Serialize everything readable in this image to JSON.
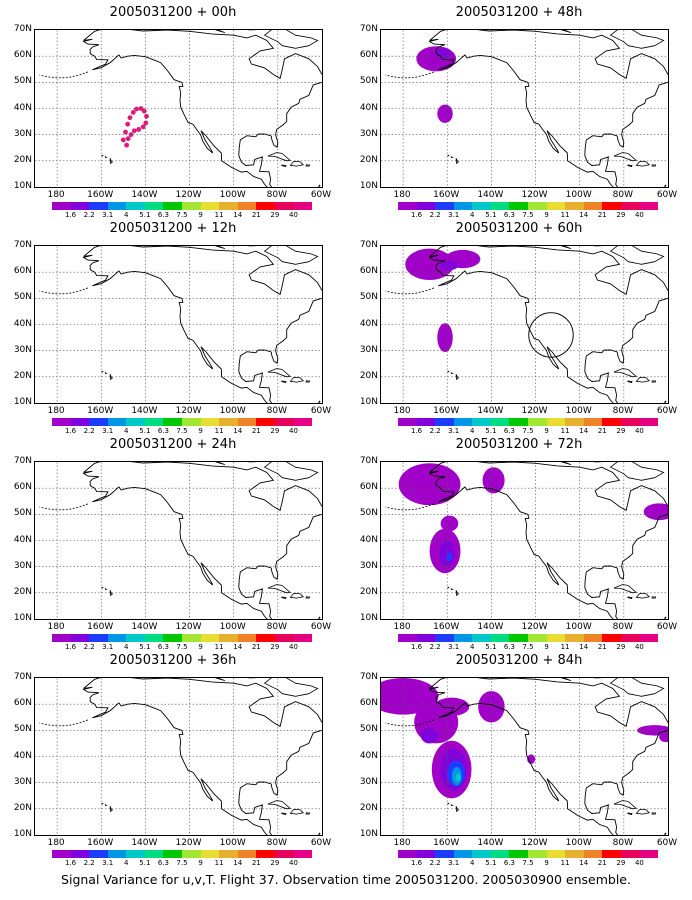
{
  "panels": [
    {
      "title": "2005031200 + 00h"
    },
    {
      "title": "2005031200 + 12h"
    },
    {
      "title": "2005031200 + 24h"
    },
    {
      "title": "2005031200 + 36h"
    },
    {
      "title": "2005031200 + 48h"
    },
    {
      "title": "2005031200 + 60h"
    },
    {
      "title": "2005031200 + 72h"
    },
    {
      "title": "2005031200 + 84h"
    }
  ],
  "y_axis_labels": [
    "70N",
    "60N",
    "50N",
    "40N",
    "30N",
    "20N",
    "10N"
  ],
  "x_axis_labels": [
    "180",
    "160W",
    "140W",
    "120W",
    "100W",
    "80W",
    "60W"
  ],
  "colorbar": {
    "labels": [
      "1.6",
      "2.2",
      "3.1",
      "4",
      "5.1",
      "6.3",
      "7.5",
      "9",
      "11",
      "14",
      "21",
      "29",
      "40"
    ],
    "colors": [
      "#a000c8",
      "#8200dc",
      "#1e3cff",
      "#0096e6",
      "#00c8c8",
      "#00dc82",
      "#00c800",
      "#a0e632",
      "#e6dc32",
      "#e6af2d",
      "#f08228",
      "#ff0000",
      "#e6005a",
      "#e60082"
    ]
  },
  "caption": "Signal Variance for u,v,T. Flight 37. Observation time 2005031200. 2005030900 ensemble."
}
